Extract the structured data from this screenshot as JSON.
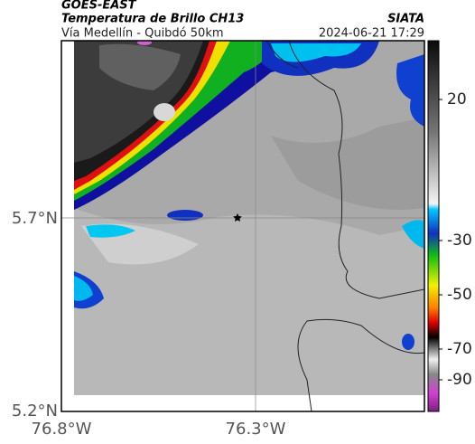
{
  "header": {
    "source": "GOES-EAST",
    "title": "Temperatura de Brillo CH13",
    "subtitle": "Vía Medellín - Quibdó 50km",
    "agency": "SIATA",
    "timestamp": "2024-06-21 17:29"
  },
  "axes": {
    "lat_labels": [
      "5.7°N",
      "5.2°N"
    ],
    "lon_labels": [
      "76.8°W",
      "76.3°W"
    ]
  },
  "colorbar": {
    "ticks": [
      20,
      -30,
      -50,
      -70,
      -90
    ]
  }
}
